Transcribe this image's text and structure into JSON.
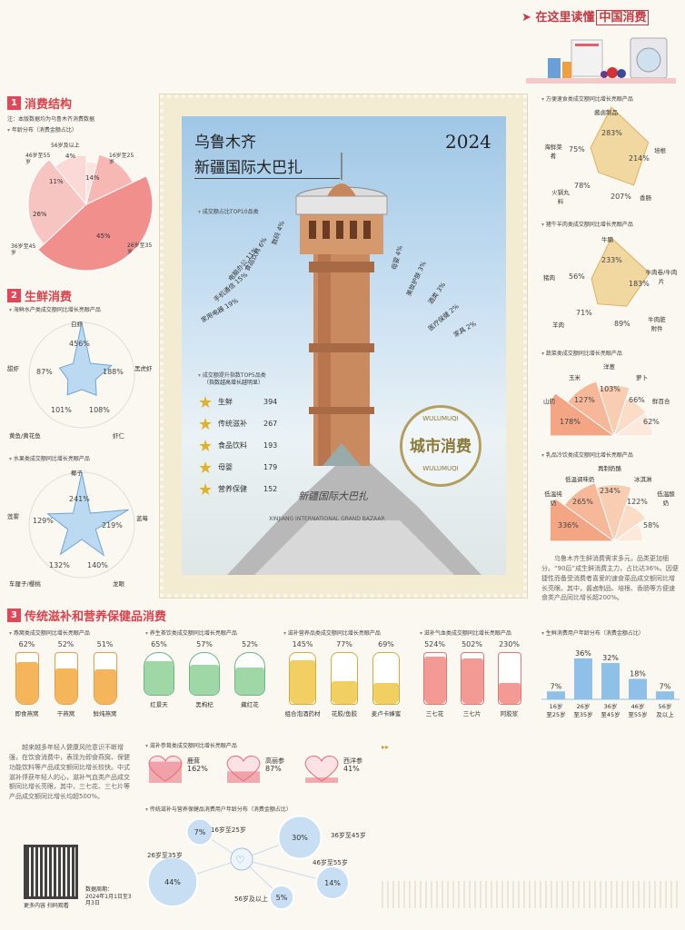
{
  "header": {
    "label": "在这里读懂",
    "highlight": "中国消费"
  },
  "s1": {
    "num": "1",
    "title": "消费结构",
    "note": "注：本版数据均为乌鲁木齐消费数据",
    "pie_title": "年龄分布（消费金额占比）",
    "slices": [
      {
        "label": "56岁及以上",
        "value": "4%"
      },
      {
        "label": "16岁至25岁",
        "value": "14%"
      },
      {
        "label": "26岁至35岁",
        "value": "45%"
      },
      {
        "label": "36岁至45岁",
        "value": "26%"
      },
      {
        "label": "46岁至55岁",
        "value": "11%"
      }
    ]
  },
  "s2": {
    "num": "2",
    "title": "生鲜消费",
    "seafood": {
      "title": "海鲜水产类成交额同比增长亮眼产品",
      "items": [
        {
          "name": "白虾",
          "value": "456%"
        },
        {
          "name": "黑虎虾",
          "value": "188%"
        },
        {
          "name": "虾仁",
          "value": "108%"
        },
        {
          "name": "黄鱼/黄花鱼",
          "value": "101%"
        },
        {
          "name": "甜虾",
          "value": "87%"
        }
      ]
    },
    "fruit": {
      "title": "水果类成交额同比增长亮眼产品",
      "items": [
        {
          "name": "椰子",
          "value": "241%"
        },
        {
          "name": "蓝莓",
          "value": "219%"
        },
        {
          "name": "龙眼",
          "value": "140%"
        },
        {
          "name": "车厘子/樱桃",
          "value": "132%"
        },
        {
          "name": "莲雾",
          "value": "129%"
        }
      ]
    }
  },
  "poster": {
    "city": "乌鲁木齐",
    "place": "新疆国际大巴扎",
    "year": "2024",
    "top10_title": "成交额占比TOP10品类",
    "left_cats": [
      {
        "name": "数码",
        "value": "4%"
      },
      {
        "name": "食品饮料",
        "value": "6%"
      },
      {
        "name": "电脑办公",
        "value": "11%"
      },
      {
        "name": "手机通信",
        "value": "15%"
      },
      {
        "name": "家用电器",
        "value": "19%"
      }
    ],
    "right_cats": [
      {
        "name": "母婴",
        "value": "4%"
      },
      {
        "name": "美妆护肤",
        "value": "3%"
      },
      {
        "name": "酒类",
        "value": "3%"
      },
      {
        "name": "医疗保健",
        "value": "2%"
      },
      {
        "name": "家具",
        "value": "2%"
      }
    ],
    "top5_title": "成交额提升指数TOP5品类",
    "top5_note": "（指数越高增长越明显）",
    "top5": [
      {
        "name": "生鲜",
        "value": "394"
      },
      {
        "name": "传统滋补",
        "value": "267"
      },
      {
        "name": "食品饮料",
        "value": "193"
      },
      {
        "name": "母婴",
        "value": "179"
      },
      {
        "name": "营养保健",
        "value": "152"
      }
    ],
    "building_text": "新疆国际大巴扎",
    "building_en": "XINJIANG INTERNATIONAL GRAND BAZAAR",
    "seal_main": "城市消费",
    "seal_top": "WULUMUQI",
    "seal_bottom": "WULUMUQI"
  },
  "right": {
    "fast": {
      "title": "方便速食类成交额同比增长亮眼产品",
      "items": [
        {
          "name": "酱卤制品",
          "value": "283%"
        },
        {
          "name": "培根",
          "value": "214%"
        },
        {
          "name": "香肠",
          "value": "207%"
        },
        {
          "name": "火锅丸料",
          "value": "78%"
        },
        {
          "name": "海鲜菜肴",
          "value": "75%"
        }
      ]
    },
    "meat": {
      "title": "猪牛羊肉类成交额同比增长亮眼产品",
      "items": [
        {
          "name": "牛腩",
          "value": "233%"
        },
        {
          "name": "牛肉卷/牛肉片",
          "value": "183%"
        },
        {
          "name": "牛肉脏附件",
          "value": "89%"
        },
        {
          "name": "羊肉",
          "value": "71%"
        },
        {
          "name": "猪肉",
          "value": "56%"
        }
      ]
    },
    "veg": {
      "title": "蔬菜类成交额同比增长亮眼产品",
      "items": [
        {
          "name": "山药",
          "value": "178%"
        },
        {
          "name": "玉米",
          "value": "127%"
        },
        {
          "name": "洋葱",
          "value": "103%"
        },
        {
          "name": "萝卜",
          "value": "66%"
        },
        {
          "name": "鲜百合",
          "value": "62%"
        }
      ]
    },
    "dairy": {
      "title": "乳品冷饮类成交额同比增长亮眼产品",
      "items": [
        {
          "name": "低温纯奶",
          "value": "336%"
        },
        {
          "name": "低温调味奶",
          "value": "265%"
        },
        {
          "name": "再制奶酪",
          "value": "234%"
        },
        {
          "name": "冰淇淋",
          "value": "122%"
        },
        {
          "name": "低温酸奶",
          "value": "58%"
        }
      ]
    },
    "para": "乌鲁木齐生鲜消费需求多元，品类更加细分。“90后”成生鲜消费主力，占比达36%。因便捷性而备受消费者喜爱的速食菜品成交额同比增长亮眼。其中，酱卤制品、培根、香肠等方便速食类产品同比增长超200%。"
  },
  "s3": {
    "num": "3",
    "title": "传统滋补和营养保健品消费",
    "bird": {
      "title": "燕窝类成交额同比增长亮眼产品",
      "items": [
        {
          "name": "即食燕窝",
          "value": "62%"
        },
        {
          "name": "干燕窝",
          "value": "52%"
        },
        {
          "name": "鲜炖燕窝",
          "value": "51%"
        }
      ]
    },
    "tea": {
      "title": "养生茶饮类成交额同比增长亮眼产品",
      "items": [
        {
          "name": "红景天",
          "value": "65%"
        },
        {
          "name": "黑枸杞",
          "value": "57%"
        },
        {
          "name": "藏红花",
          "value": "52%"
        }
      ]
    },
    "wine": {
      "title": "滋补营养品类成交额同比增长亮眼产品",
      "items": [
        {
          "name": "组合泡酒药材",
          "value": "145%"
        },
        {
          "name": "花胶/鱼胶",
          "value": "77%"
        },
        {
          "name": "麦卢卡蜂蜜",
          "value": "69%"
        }
      ]
    },
    "qi": {
      "title": "滋补气血类成交额同比增长亮眼产品",
      "items": [
        {
          "name": "三七花",
          "value": "524%"
        },
        {
          "name": "三七片",
          "value": "502%"
        },
        {
          "name": "阿胶浆",
          "value": "230%"
        }
      ]
    },
    "ginseng": {
      "title": "滋补参茸类成交额同比增长亮眼产品",
      "items": [
        {
          "name": "鹿茸",
          "value": "162%"
        },
        {
          "name": "高丽参",
          "value": "87%"
        },
        {
          "name": "西洋参",
          "value": "41%"
        }
      ]
    },
    "bubble_title": "传统滋补与营养保健品消费用户年龄分布（消费金额占比）",
    "bubbles": [
      {
        "label": "16岁至25岁",
        "value": "7%"
      },
      {
        "label": "36岁至45岁",
        "value": "30%"
      },
      {
        "label": "26岁至35岁",
        "value": "44%"
      },
      {
        "label": "46岁至55岁",
        "value": "14%"
      },
      {
        "label": "56岁及以上",
        "value": "5%"
      }
    ],
    "para": "越来越多年轻人健康风险意识不断增强，在饮食消费中，表现为即食燕窝、保健功能饮料等产品成交额同比增长较快。中式滋补俘获年轻人的心，滋补气血类产品成交额同比增长亮眼，其中，三七花、三七片等产品成交额同比增长均超500%。",
    "qr_note": "更多内容 扫码观看",
    "period_label": "数据周期：",
    "period": "2024年1月1日至3月3日"
  },
  "fresh_age": {
    "title": "生鲜消费用户年龄分布（消费金额占比）",
    "chart_data": {
      "type": "bar",
      "categories": [
        "16岁至25岁",
        "26岁至35岁",
        "36岁至45岁",
        "46岁至55岁",
        "56岁及以上"
      ],
      "values": [
        7,
        36,
        32,
        18,
        7
      ],
      "labels": [
        "7%",
        "36%",
        "32%",
        "18%",
        "7%"
      ]
    }
  }
}
